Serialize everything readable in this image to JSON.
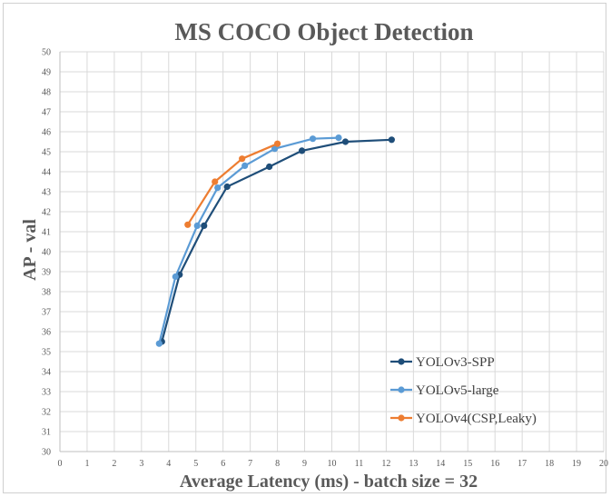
{
  "chart_data": {
    "type": "line",
    "title": "MS COCO Object Detection",
    "xlabel": "Average Latency (ms) - batch size = 32",
    "ylabel": "AP - val",
    "xlim": [
      0,
      20
    ],
    "ylim": [
      30,
      50
    ],
    "x_ticks": [
      "0",
      "1",
      "2",
      "3",
      "4",
      "5",
      "6",
      "7",
      "8",
      "9",
      "10",
      "11",
      "12",
      "13",
      "14",
      "15",
      "16",
      "17",
      "18",
      "19",
      "20"
    ],
    "y_ticks": [
      "30",
      "31",
      "32",
      "33",
      "34",
      "35",
      "36",
      "37",
      "38",
      "39",
      "40",
      "41",
      "42",
      "43",
      "44",
      "45",
      "46",
      "47",
      "48",
      "49",
      "50"
    ],
    "grid": true,
    "legend_position": "bottom-right",
    "series": [
      {
        "name": "YOLOv3-SPP",
        "color": "#1f4e79",
        "points": [
          [
            3.75,
            35.5
          ],
          [
            4.4,
            38.85
          ],
          [
            5.3,
            41.3
          ],
          [
            6.15,
            43.25
          ],
          [
            7.7,
            44.25
          ],
          [
            8.9,
            45.05
          ],
          [
            10.5,
            45.5
          ],
          [
            12.2,
            45.6
          ]
        ]
      },
      {
        "name": "YOLOv5-large",
        "color": "#5b9bd5",
        "points": [
          [
            3.65,
            35.4
          ],
          [
            4.25,
            38.75
          ],
          [
            5.05,
            41.3
          ],
          [
            5.8,
            43.2
          ],
          [
            6.8,
            44.3
          ],
          [
            7.9,
            45.15
          ],
          [
            9.3,
            45.65
          ],
          [
            10.25,
            45.7
          ]
        ]
      },
      {
        "name": "YOLOv4(CSP,Leaky)",
        "color": "#ed7d31",
        "points": [
          [
            4.7,
            41.35
          ],
          [
            5.7,
            43.5
          ],
          [
            6.7,
            44.65
          ],
          [
            8.0,
            45.4
          ]
        ]
      }
    ]
  }
}
